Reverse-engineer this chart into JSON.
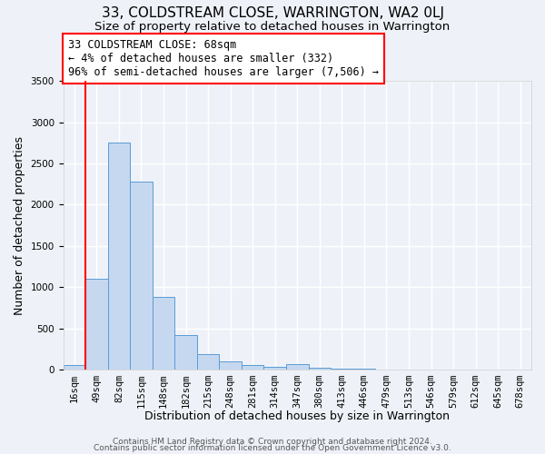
{
  "title": "33, COLDSTREAM CLOSE, WARRINGTON, WA2 0LJ",
  "subtitle": "Size of property relative to detached houses in Warrington",
  "xlabel": "Distribution of detached houses by size in Warrington",
  "ylabel": "Number of detached properties",
  "bin_labels": [
    "16sqm",
    "49sqm",
    "82sqm",
    "115sqm",
    "148sqm",
    "182sqm",
    "215sqm",
    "248sqm",
    "281sqm",
    "314sqm",
    "347sqm",
    "380sqm",
    "413sqm",
    "446sqm",
    "479sqm",
    "513sqm",
    "546sqm",
    "579sqm",
    "612sqm",
    "645sqm",
    "678sqm"
  ],
  "bar_values": [
    50,
    1100,
    2750,
    2280,
    880,
    420,
    185,
    95,
    50,
    30,
    65,
    20,
    10,
    5,
    2,
    1,
    0,
    0,
    0,
    0,
    0
  ],
  "bar_color": "#c5d8f0",
  "bar_edge_color": "#5b9bd5",
  "vline_x_index": 1,
  "vline_color": "red",
  "annotation_text": "33 COLDSTREAM CLOSE: 68sqm\n← 4% of detached houses are smaller (332)\n96% of semi-detached houses are larger (7,506) →",
  "annotation_box_color": "white",
  "annotation_box_edge_color": "red",
  "ylim": [
    0,
    3500
  ],
  "footer1": "Contains HM Land Registry data © Crown copyright and database right 2024.",
  "footer2": "Contains public sector information licensed under the Open Government Licence v3.0.",
  "background_color": "#eef2f8",
  "grid_color": "white",
  "title_fontsize": 11,
  "subtitle_fontsize": 9.5,
  "axis_label_fontsize": 9,
  "tick_fontsize": 7.5,
  "annotation_fontsize": 8.5,
  "footer_fontsize": 6.5
}
